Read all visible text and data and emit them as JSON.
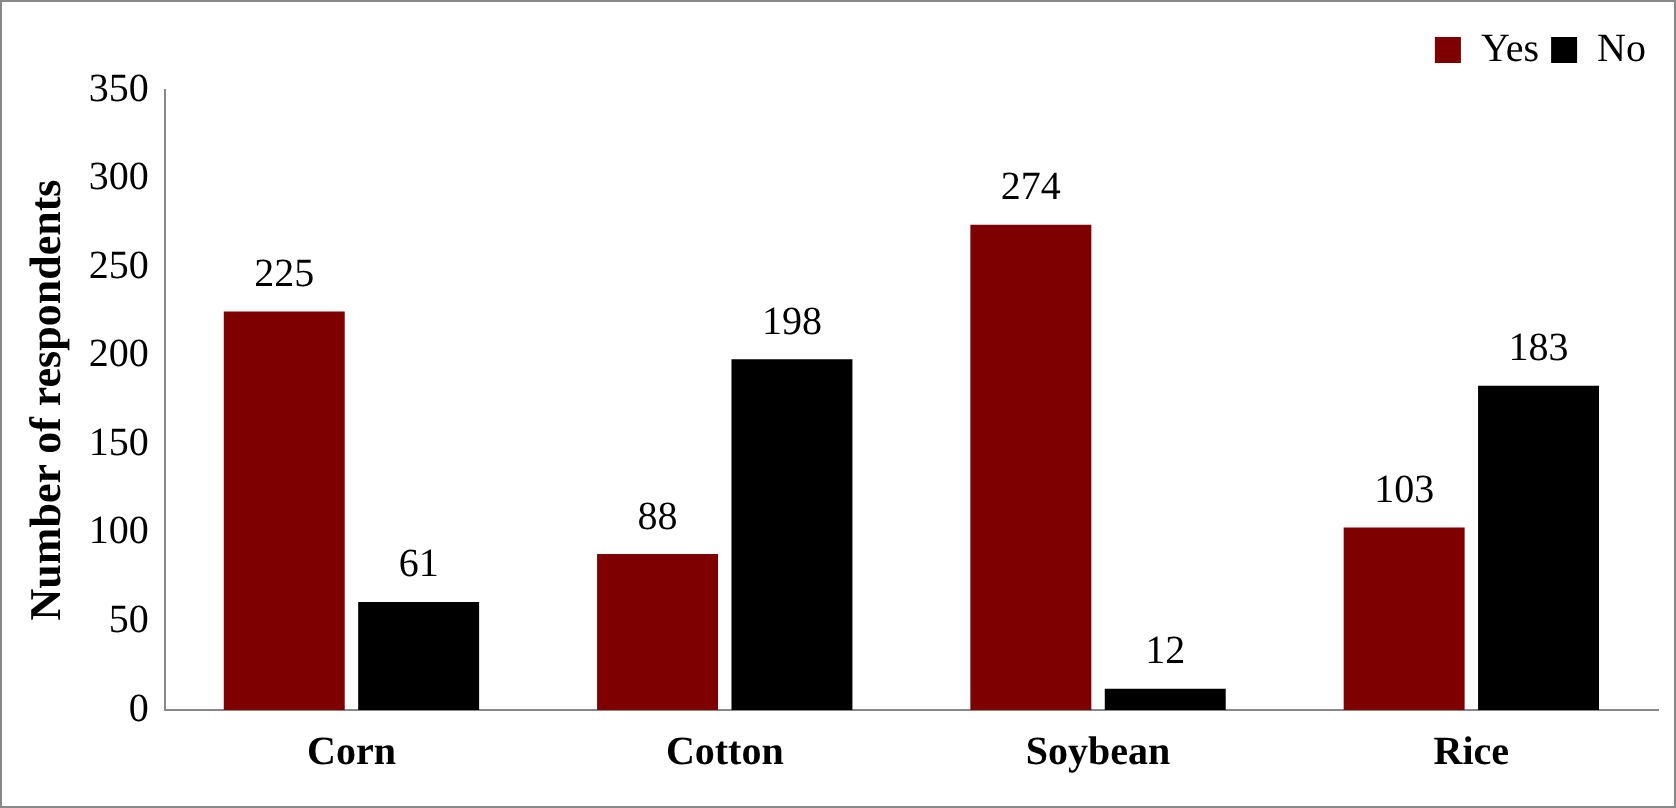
{
  "chart_data": {
    "type": "bar",
    "ylabel": "Number of respondents",
    "categories": [
      "Corn",
      "Cotton",
      "Soybean",
      "Rice"
    ],
    "series": [
      {
        "name": "Yes",
        "color": "#7f0000",
        "values": [
          225,
          88,
          274,
          103
        ]
      },
      {
        "name": "No",
        "color": "#000000",
        "values": [
          61,
          198,
          12,
          183
        ]
      }
    ],
    "ylim": [
      0,
      350
    ],
    "yticks": [
      0,
      50,
      100,
      150,
      200,
      250,
      300,
      350
    ],
    "grid": false,
    "legend": "top right",
    "data_labels": true
  }
}
